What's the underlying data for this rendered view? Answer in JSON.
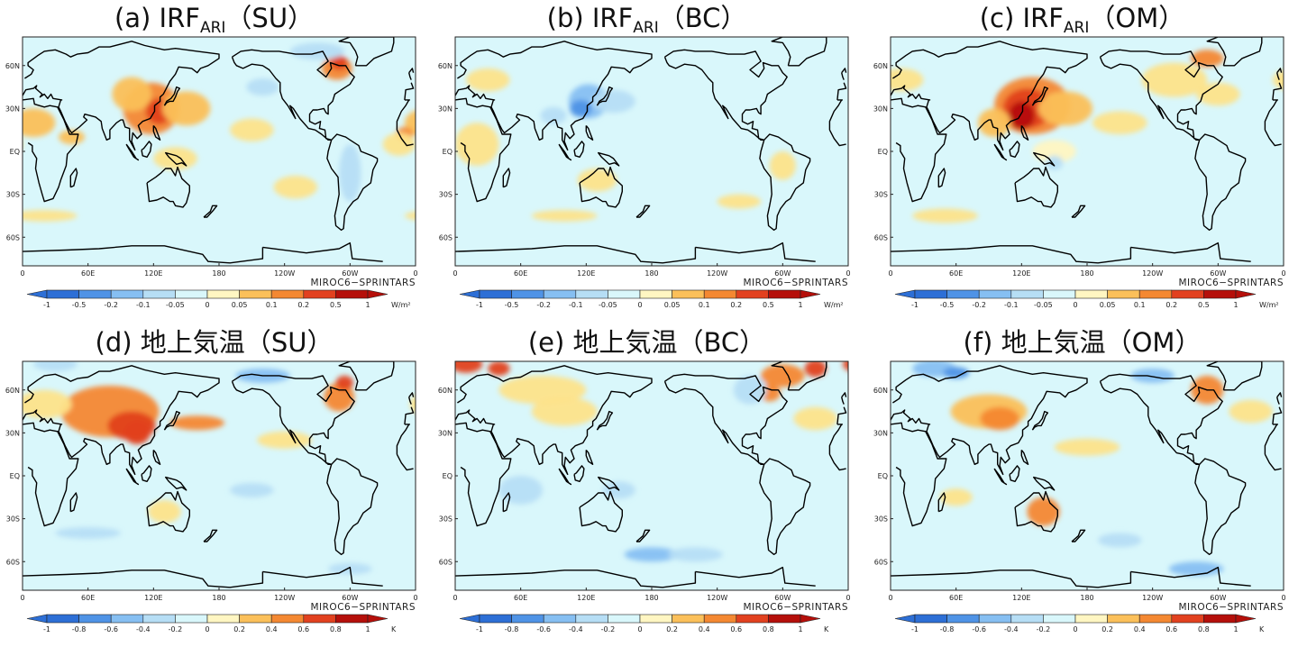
{
  "colors": {
    "ocean": "#d9f7fb",
    "coast": "#000000",
    "scale": [
      "#2d6fd6",
      "#4f93e6",
      "#86bff2",
      "#b6def5",
      "#d9f7fb",
      "#fff6c2",
      "#fde38a",
      "#fbc05a",
      "#f48832",
      "#e2411f",
      "#b50f0a"
    ]
  },
  "scales": {
    "irf": {
      "ticks": [
        "-1",
        "-0.5",
        "-0.2",
        "-0.1",
        "-0.05",
        "0",
        "0.05",
        "0.1",
        "0.2",
        "0.5",
        "1"
      ],
      "unit": "W/m²"
    },
    "temp": {
      "ticks": [
        "-1",
        "-0.8",
        "-0.6",
        "-0.4",
        "-0.2",
        "0",
        "0.2",
        "0.4",
        "0.6",
        "0.8",
        "1"
      ],
      "unit": "K"
    }
  },
  "axes": {
    "lon_ticks": [
      "0",
      "60E",
      "120E",
      "180",
      "120W",
      "60W",
      "0"
    ],
    "lat_ticks": [
      "60N",
      "30N",
      "EQ",
      "30S",
      "60S"
    ]
  },
  "panels": [
    {
      "pre": "(a) IRF",
      "sub": "ARI",
      "post": "（SU）",
      "credit": "MIROC6−SPRINTARS",
      "scale": "irf",
      "blobs": [
        [
          118,
          30,
          26,
          18,
          8
        ],
        [
          125,
          28,
          12,
          9,
          9
        ],
        [
          150,
          30,
          22,
          12,
          7
        ],
        [
          100,
          40,
          18,
          12,
          7
        ],
        [
          -72,
          58,
          14,
          8,
          8
        ],
        [
          -70,
          62,
          8,
          5,
          9
        ],
        [
          10,
          20,
          20,
          10,
          7
        ],
        [
          -10,
          12,
          8,
          5,
          8
        ],
        [
          -15,
          5,
          15,
          8,
          6
        ],
        [
          45,
          10,
          12,
          5,
          7
        ],
        [
          140,
          -5,
          20,
          8,
          6
        ],
        [
          -150,
          15,
          20,
          8,
          6
        ],
        [
          -60,
          -15,
          10,
          20,
          3
        ],
        [
          -90,
          70,
          25,
          6,
          3
        ],
        [
          -140,
          45,
          15,
          6,
          3
        ],
        [
          20,
          -45,
          30,
          4,
          6
        ],
        [
          -110,
          -25,
          20,
          8,
          6
        ]
      ]
    },
    {
      "pre": "(b) IRF",
      "sub": "ARI",
      "post": "（BC）",
      "credit": "MIROC6−SPRINTARS",
      "scale": "irf",
      "blobs": [
        [
          122,
          35,
          18,
          12,
          2
        ],
        [
          115,
          30,
          10,
          6,
          1
        ],
        [
          145,
          35,
          20,
          8,
          3
        ],
        [
          90,
          25,
          12,
          6,
          3
        ],
        [
          20,
          5,
          20,
          15,
          6
        ],
        [
          -60,
          -10,
          12,
          10,
          6
        ],
        [
          130,
          -20,
          18,
          8,
          6
        ],
        [
          100,
          -45,
          30,
          4,
          6
        ],
        [
          -100,
          -35,
          20,
          5,
          6
        ],
        [
          30,
          50,
          20,
          8,
          6
        ]
      ]
    },
    {
      "pre": "(c) IRF",
      "sub": "ARI",
      "post": "（OM）",
      "credit": "MIROC6−SPRINTARS",
      "scale": "irf",
      "blobs": [
        [
          130,
          32,
          35,
          20,
          8
        ],
        [
          125,
          30,
          22,
          14,
          9
        ],
        [
          120,
          25,
          12,
          10,
          10
        ],
        [
          160,
          30,
          25,
          12,
          7
        ],
        [
          95,
          20,
          15,
          10,
          7
        ],
        [
          150,
          0,
          20,
          8,
          5
        ],
        [
          -100,
          50,
          30,
          12,
          6
        ],
        [
          -60,
          40,
          20,
          8,
          6
        ],
        [
          10,
          50,
          20,
          8,
          6
        ],
        [
          -70,
          65,
          15,
          6,
          8
        ],
        [
          150,
          -8,
          8,
          5,
          3
        ],
        [
          -150,
          20,
          25,
          8,
          6
        ],
        [
          50,
          -45,
          30,
          5,
          6
        ]
      ]
    },
    {
      "pre": "(d) 地上気温",
      "sub": "",
      "post": "（SU）",
      "credit": "MIROC6−SPRINTARS",
      "scale": "temp",
      "blobs": [
        [
          80,
          45,
          45,
          18,
          8
        ],
        [
          100,
          35,
          22,
          10,
          9
        ],
        [
          105,
          30,
          12,
          8,
          9
        ],
        [
          160,
          37,
          25,
          5,
          8
        ],
        [
          -70,
          55,
          14,
          10,
          8
        ],
        [
          -65,
          65,
          8,
          5,
          9
        ],
        [
          30,
          78,
          20,
          5,
          3
        ],
        [
          -140,
          70,
          25,
          5,
          2
        ],
        [
          20,
          50,
          25,
          10,
          6
        ],
        [
          60,
          -40,
          30,
          4,
          3
        ],
        [
          -60,
          -65,
          20,
          4,
          3
        ],
        [
          130,
          -25,
          15,
          8,
          6
        ],
        [
          -120,
          25,
          25,
          6,
          6
        ],
        [
          -150,
          -10,
          20,
          5,
          3
        ]
      ]
    },
    {
      "pre": "(e) 地上気温",
      "sub": "",
      "post": "（BC）",
      "credit": "MIROC6−SPRINTARS",
      "scale": "temp",
      "blobs": [
        [
          10,
          78,
          15,
          6,
          9
        ],
        [
          40,
          75,
          10,
          5,
          9
        ],
        [
          -60,
          70,
          20,
          8,
          8
        ],
        [
          -72,
          58,
          10,
          6,
          8
        ],
        [
          -30,
          75,
          10,
          6,
          9
        ],
        [
          80,
          60,
          40,
          10,
          6
        ],
        [
          100,
          45,
          30,
          10,
          6
        ],
        [
          180,
          -55,
          25,
          5,
          2
        ],
        [
          -140,
          -55,
          25,
          5,
          3
        ],
        [
          -90,
          60,
          15,
          10,
          3
        ],
        [
          60,
          -10,
          20,
          10,
          3
        ],
        [
          -30,
          40,
          20,
          8,
          6
        ],
        [
          150,
          -10,
          15,
          6,
          3
        ]
      ]
    },
    {
      "pre": "(f) 地上気温",
      "sub": "",
      "post": "（OM）",
      "credit": "MIROC6−SPRINTARS",
      "scale": "temp",
      "blobs": [
        [
          40,
          75,
          20,
          6,
          2
        ],
        [
          60,
          72,
          12,
          4,
          1
        ],
        [
          -120,
          70,
          20,
          5,
          2
        ],
        [
          90,
          45,
          35,
          12,
          7
        ],
        [
          100,
          40,
          18,
          8,
          8
        ],
        [
          -70,
          60,
          15,
          10,
          8
        ],
        [
          140,
          -25,
          15,
          10,
          8
        ],
        [
          -80,
          -65,
          25,
          5,
          2
        ],
        [
          -150,
          -45,
          20,
          5,
          3
        ],
        [
          -30,
          45,
          20,
          8,
          6
        ],
        [
          60,
          -15,
          15,
          6,
          6
        ],
        [
          180,
          20,
          30,
          6,
          6
        ]
      ]
    }
  ]
}
